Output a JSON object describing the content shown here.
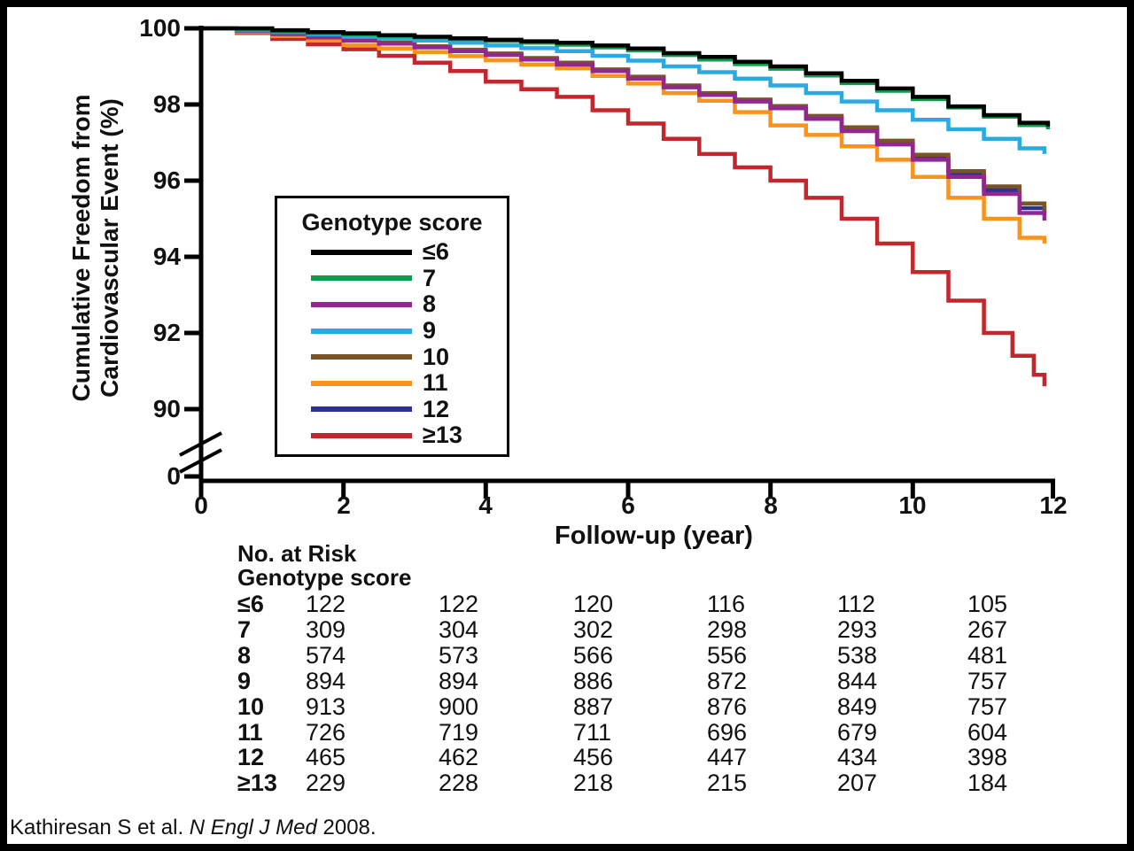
{
  "figure": {
    "y_axis": {
      "title_line1": "Cumulative Freedom from",
      "title_line2": "Cardiovascular Event (%)",
      "ticks": [
        "100",
        "98",
        "96",
        "94",
        "92",
        "90"
      ],
      "zero_label": "0"
    },
    "x_axis": {
      "title": "Follow-up (year)",
      "ticks": [
        "0",
        "2",
        "4",
        "6",
        "8",
        "10",
        "12"
      ]
    },
    "legend": {
      "title": "Genotype score",
      "entries": [
        {
          "label": "≤6"
        },
        {
          "label": "7"
        },
        {
          "label": "8"
        },
        {
          "label": "9"
        },
        {
          "label": "10"
        },
        {
          "label": "11"
        },
        {
          "label": "12"
        },
        {
          "label": "≥13"
        }
      ]
    },
    "risk_table": {
      "header1": "No. at Risk",
      "header2": "Genotype score",
      "rows": [
        {
          "label": "≤6",
          "values": [
            "122",
            "122",
            "120",
            "116",
            "112",
            "105"
          ]
        },
        {
          "label": "7",
          "values": [
            "309",
            "304",
            "302",
            "298",
            "293",
            "267"
          ]
        },
        {
          "label": "8",
          "values": [
            "574",
            "573",
            "566",
            "556",
            "538",
            "481"
          ]
        },
        {
          "label": "9",
          "values": [
            "894",
            "894",
            "886",
            "872",
            "844",
            "757"
          ]
        },
        {
          "label": "10",
          "values": [
            "913",
            "900",
            "887",
            "876",
            "849",
            "757"
          ]
        },
        {
          "label": "11",
          "values": [
            "726",
            "719",
            "711",
            "696",
            "679",
            "604"
          ]
        },
        {
          "label": "12",
          "values": [
            "465",
            "462",
            "456",
            "447",
            "434",
            "398"
          ]
        },
        {
          "label": "≥13",
          "values": [
            "229",
            "228",
            "218",
            "215",
            "207",
            "184"
          ]
        }
      ]
    },
    "citation": {
      "prefix": "Kathiresan S et al. ",
      "journal": "N Engl J Med",
      "suffix": " 2008."
    }
  },
  "chart_data": {
    "type": "line",
    "subtype": "kaplan-meier-step",
    "xlabel": "Follow-up (year)",
    "ylabel": "Cumulative Freedom from Cardiovascular Event (%)",
    "xlim": [
      0,
      12
    ],
    "ylim": [
      90,
      100
    ],
    "y_axis_break": {
      "shown": true,
      "break_to": 0
    },
    "x_ticks": [
      0,
      2,
      4,
      6,
      8,
      10,
      12
    ],
    "y_ticks": [
      100,
      98,
      96,
      94,
      92,
      90,
      0
    ],
    "grid": false,
    "legend_position": "inside-left",
    "legend_title": "Genotype score",
    "series": [
      {
        "name": "le6",
        "label": "≤6",
        "color": "#000000",
        "z": 7,
        "points": [
          [
            0,
            100
          ],
          [
            0.6,
            100
          ],
          [
            1,
            99.95
          ],
          [
            1.5,
            99.9
          ],
          [
            2,
            99.87
          ],
          [
            2.5,
            99.82
          ],
          [
            3,
            99.78
          ],
          [
            3.5,
            99.74
          ],
          [
            4,
            99.7
          ],
          [
            4.5,
            99.66
          ],
          [
            5,
            99.62
          ],
          [
            5.5,
            99.55
          ],
          [
            6,
            99.47
          ],
          [
            6.5,
            99.35
          ],
          [
            7,
            99.25
          ],
          [
            7.5,
            99.12
          ],
          [
            8,
            99.0
          ],
          [
            8.5,
            98.82
          ],
          [
            9,
            98.62
          ],
          [
            9.5,
            98.42
          ],
          [
            10,
            98.2
          ],
          [
            10.5,
            97.95
          ],
          [
            11,
            97.72
          ],
          [
            11.5,
            97.52
          ],
          [
            11.9,
            97.42
          ]
        ]
      },
      {
        "name": "7",
        "label": "7",
        "color": "#0f9b4c",
        "z": 6,
        "points": [
          [
            0,
            100
          ],
          [
            0.5,
            99.97
          ],
          [
            1,
            99.92
          ],
          [
            1.5,
            99.88
          ],
          [
            2,
            99.84
          ],
          [
            2.5,
            99.8
          ],
          [
            3,
            99.76
          ],
          [
            3.5,
            99.72
          ],
          [
            4,
            99.67
          ],
          [
            4.5,
            99.62
          ],
          [
            5,
            99.57
          ],
          [
            5.5,
            99.5
          ],
          [
            6,
            99.42
          ],
          [
            6.5,
            99.3
          ],
          [
            7,
            99.18
          ],
          [
            7.5,
            99.06
          ],
          [
            8,
            98.94
          ],
          [
            8.5,
            98.76
          ],
          [
            9,
            98.56
          ],
          [
            9.5,
            98.36
          ],
          [
            10,
            98.14
          ],
          [
            10.5,
            97.92
          ],
          [
            11,
            97.68
          ],
          [
            11.5,
            97.46
          ],
          [
            11.9,
            97.35
          ]
        ]
      },
      {
        "name": "8",
        "label": "8",
        "color": "#92278f",
        "z": 4,
        "points": [
          [
            0,
            100
          ],
          [
            0.5,
            99.93
          ],
          [
            1,
            99.85
          ],
          [
            1.5,
            99.76
          ],
          [
            2,
            99.68
          ],
          [
            2.5,
            99.6
          ],
          [
            3,
            99.5
          ],
          [
            3.5,
            99.4
          ],
          [
            4,
            99.3
          ],
          [
            4.5,
            99.18
          ],
          [
            5,
            99.05
          ],
          [
            5.5,
            98.88
          ],
          [
            6,
            98.68
          ],
          [
            6.5,
            98.45
          ],
          [
            7,
            98.25
          ],
          [
            7.5,
            98.08
          ],
          [
            8,
            97.9
          ],
          [
            8.5,
            97.62
          ],
          [
            9,
            97.3
          ],
          [
            9.5,
            96.95
          ],
          [
            10,
            96.55
          ],
          [
            10.5,
            96.1
          ],
          [
            11,
            95.65
          ],
          [
            11.5,
            95.15
          ],
          [
            11.85,
            94.95
          ]
        ]
      },
      {
        "name": "9",
        "label": "9",
        "color": "#29abe2",
        "z": 5,
        "points": [
          [
            0,
            100
          ],
          [
            0.5,
            99.95
          ],
          [
            1,
            99.9
          ],
          [
            1.5,
            99.84
          ],
          [
            2,
            99.78
          ],
          [
            2.5,
            99.73
          ],
          [
            3,
            99.68
          ],
          [
            3.5,
            99.62
          ],
          [
            4,
            99.55
          ],
          [
            4.5,
            99.48
          ],
          [
            5,
            99.4
          ],
          [
            5.5,
            99.28
          ],
          [
            6,
            99.15
          ],
          [
            6.5,
            99.0
          ],
          [
            7,
            98.85
          ],
          [
            7.5,
            98.68
          ],
          [
            8,
            98.5
          ],
          [
            8.5,
            98.3
          ],
          [
            9,
            98.08
          ],
          [
            9.5,
            97.85
          ],
          [
            10,
            97.6
          ],
          [
            10.5,
            97.35
          ],
          [
            11,
            97.1
          ],
          [
            11.5,
            96.85
          ],
          [
            11.85,
            96.7
          ]
        ]
      },
      {
        "name": "10",
        "label": "10",
        "color": "#7a5427",
        "z": 2,
        "points": [
          [
            0,
            100
          ],
          [
            0.5,
            99.93
          ],
          [
            1,
            99.86
          ],
          [
            1.5,
            99.78
          ],
          [
            2,
            99.7
          ],
          [
            2.5,
            99.62
          ],
          [
            3,
            99.53
          ],
          [
            3.5,
            99.44
          ],
          [
            4,
            99.34
          ],
          [
            4.5,
            99.22
          ],
          [
            5,
            99.1
          ],
          [
            5.5,
            98.92
          ],
          [
            6,
            98.73
          ],
          [
            6.5,
            98.5
          ],
          [
            7,
            98.3
          ],
          [
            7.5,
            98.13
          ],
          [
            8,
            97.96
          ],
          [
            8.5,
            97.7
          ],
          [
            9,
            97.4
          ],
          [
            9.5,
            97.05
          ],
          [
            10,
            96.68
          ],
          [
            10.5,
            96.25
          ],
          [
            11,
            95.85
          ],
          [
            11.5,
            95.4
          ],
          [
            11.85,
            95.2
          ]
        ]
      },
      {
        "name": "11",
        "label": "11",
        "color": "#f7941e",
        "z": 3,
        "points": [
          [
            0,
            100
          ],
          [
            0.5,
            99.9
          ],
          [
            1,
            99.8
          ],
          [
            1.5,
            99.68
          ],
          [
            2,
            99.56
          ],
          [
            2.5,
            99.47
          ],
          [
            3,
            99.38
          ],
          [
            3.5,
            99.27
          ],
          [
            4,
            99.16
          ],
          [
            4.5,
            99.05
          ],
          [
            5,
            98.95
          ],
          [
            5.5,
            98.75
          ],
          [
            6,
            98.55
          ],
          [
            6.5,
            98.3
          ],
          [
            7,
            98.1
          ],
          [
            7.5,
            97.8
          ],
          [
            8,
            97.45
          ],
          [
            8.5,
            97.2
          ],
          [
            9,
            96.9
          ],
          [
            9.5,
            96.55
          ],
          [
            10,
            96.1
          ],
          [
            10.5,
            95.55
          ],
          [
            11,
            95.0
          ],
          [
            11.5,
            94.5
          ],
          [
            11.85,
            94.35
          ]
        ]
      },
      {
        "name": "12",
        "label": "12",
        "color": "#2e3192",
        "z": 1,
        "points": [
          [
            0,
            100
          ],
          [
            0.5,
            99.92
          ],
          [
            1,
            99.85
          ],
          [
            1.5,
            99.77
          ],
          [
            2,
            99.69
          ],
          [
            2.5,
            99.61
          ],
          [
            3,
            99.51
          ],
          [
            3.5,
            99.41
          ],
          [
            4,
            99.31
          ],
          [
            4.5,
            99.2
          ],
          [
            5,
            99.07
          ],
          [
            5.5,
            98.9
          ],
          [
            6,
            98.7
          ],
          [
            6.5,
            98.47
          ],
          [
            7,
            98.27
          ],
          [
            7.5,
            98.1
          ],
          [
            8,
            97.92
          ],
          [
            8.5,
            97.65
          ],
          [
            9,
            97.35
          ],
          [
            9.5,
            97.0
          ],
          [
            10,
            96.6
          ],
          [
            10.5,
            96.18
          ],
          [
            11,
            95.75
          ],
          [
            11.5,
            95.28
          ],
          [
            11.85,
            95.08
          ]
        ]
      },
      {
        "name": "ge13",
        "label": "≥13",
        "color": "#c1272d",
        "z": 0,
        "points": [
          [
            0,
            100
          ],
          [
            0.5,
            99.88
          ],
          [
            1,
            99.72
          ],
          [
            1.5,
            99.58
          ],
          [
            2,
            99.45
          ],
          [
            2.5,
            99.28
          ],
          [
            3,
            99.1
          ],
          [
            3.5,
            98.88
          ],
          [
            4,
            98.6
          ],
          [
            4.5,
            98.4
          ],
          [
            5,
            98.2
          ],
          [
            5.5,
            97.85
          ],
          [
            6,
            97.5
          ],
          [
            6.5,
            97.1
          ],
          [
            7,
            96.7
          ],
          [
            7.5,
            96.35
          ],
          [
            8,
            96.0
          ],
          [
            8.5,
            95.55
          ],
          [
            9,
            95.0
          ],
          [
            9.5,
            94.35
          ],
          [
            10,
            93.6
          ],
          [
            10.5,
            92.85
          ],
          [
            11,
            92.0
          ],
          [
            11.4,
            91.4
          ],
          [
            11.7,
            90.9
          ],
          [
            11.85,
            90.6
          ]
        ]
      }
    ],
    "number_at_risk": {
      "timepoints_years": [
        0,
        2,
        4,
        6,
        8,
        10
      ],
      "groups": [
        {
          "label": "≤6",
          "counts": [
            122,
            122,
            120,
            116,
            112,
            105
          ]
        },
        {
          "label": "7",
          "counts": [
            309,
            304,
            302,
            298,
            293,
            267
          ]
        },
        {
          "label": "8",
          "counts": [
            574,
            573,
            566,
            556,
            538,
            481
          ]
        },
        {
          "label": "9",
          "counts": [
            894,
            894,
            886,
            872,
            844,
            757
          ]
        },
        {
          "label": "10",
          "counts": [
            913,
            900,
            887,
            876,
            849,
            757
          ]
        },
        {
          "label": "11",
          "counts": [
            726,
            719,
            711,
            696,
            679,
            604
          ]
        },
        {
          "label": "12",
          "counts": [
            465,
            462,
            456,
            447,
            434,
            398
          ]
        },
        {
          "label": "≥13",
          "counts": [
            229,
            228,
            218,
            215,
            207,
            184
          ]
        }
      ]
    }
  }
}
